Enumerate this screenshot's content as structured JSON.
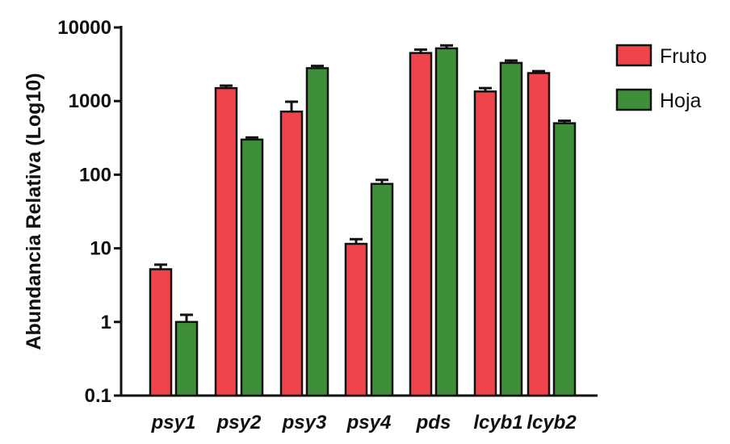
{
  "chart_data": {
    "type": "bar",
    "title": "",
    "xlabel": "",
    "ylabel": "Abundancia Relativa (Log10)",
    "yscale": "log",
    "ylim": [
      0.1,
      10000
    ],
    "yticks": [
      0.1,
      1,
      10,
      100,
      1000,
      10000
    ],
    "ytick_labels": [
      "0.1",
      "1",
      "10",
      "100",
      "1000",
      "10000"
    ],
    "categories": [
      "psy1",
      "psy2",
      "psy3",
      "psy4",
      "pds",
      "lcyb1",
      "lcyb2"
    ],
    "series": [
      {
        "name": "Fruto",
        "color": "#f0444c",
        "values": [
          5.2,
          1500,
          720,
          11.5,
          4500,
          1350,
          2400
        ],
        "errors": [
          0.8,
          120,
          260,
          1.8,
          500,
          150,
          150
        ]
      },
      {
        "name": "Hoja",
        "color": "#3f8f3a",
        "values": [
          1.0,
          300,
          2800,
          75,
          5200,
          3300,
          500
        ],
        "errors": [
          0.25,
          20,
          200,
          10,
          500,
          250,
          40
        ]
      }
    ],
    "legend": "top-right",
    "grid": false
  }
}
